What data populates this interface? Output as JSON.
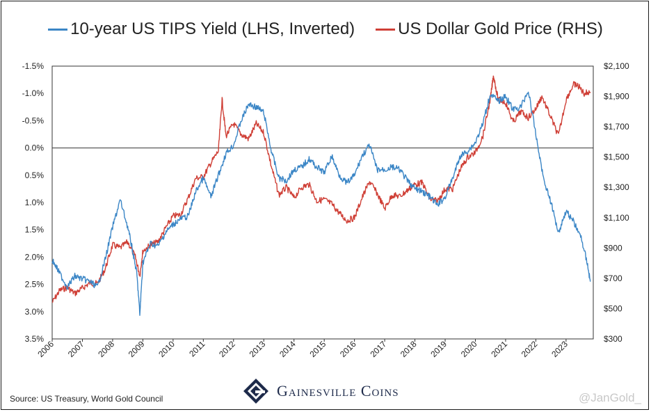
{
  "legend": {
    "tips_label": "10-year US TIPS Yield (LHS, Inverted)",
    "gold_label": "US Dollar Gold Price (RHS)"
  },
  "colors": {
    "tips": "#3b86c6",
    "gold": "#cf3f36",
    "zero_line": "#333333",
    "logo": "#1d2a4a"
  },
  "footer": {
    "source": "Source: US Treasury, World Gold Council",
    "brand": "Gainesville Coins",
    "watermark": "@JanGold_"
  },
  "chart_data": {
    "type": "line",
    "x_ticks": [
      "2006",
      "2007",
      "2008",
      "2009",
      "2010",
      "2011",
      "2012",
      "2013",
      "2014",
      "2015",
      "2016",
      "2017",
      "2018",
      "2019",
      "2020",
      "2021",
      "2022",
      "2023"
    ],
    "left_axis": {
      "inverted": true,
      "ylim": [
        -1.5,
        3.5
      ],
      "ticks": [
        "-1.5%",
        "-1.0%",
        "-0.5%",
        "0.0%",
        "0.5%",
        "1.0%",
        "1.5%",
        "2.0%",
        "2.5%",
        "3.0%",
        "3.5%"
      ]
    },
    "right_axis": {
      "ylim": [
        300,
        2100
      ],
      "ticks": [
        "$300",
        "$500",
        "$700",
        "$900",
        "$1,100",
        "$1,300",
        "$1,500",
        "$1,700",
        "$1,900",
        "$2,100"
      ]
    },
    "xlim": [
      2006.0,
      2023.9
    ],
    "zero_line": 0.0,
    "series": [
      {
        "name": "10-year US TIPS Yield (LHS, Inverted)",
        "axis": "left",
        "x": [
          2006.0,
          2006.25,
          2006.5,
          2006.75,
          2007.0,
          2007.25,
          2007.5,
          2007.75,
          2008.0,
          2008.25,
          2008.5,
          2008.65,
          2008.8,
          2008.9,
          2009.0,
          2009.25,
          2009.5,
          2009.75,
          2010.0,
          2010.25,
          2010.5,
          2010.75,
          2011.0,
          2011.25,
          2011.5,
          2011.75,
          2012.0,
          2012.25,
          2012.5,
          2012.75,
          2013.0,
          2013.25,
          2013.5,
          2013.75,
          2014.0,
          2014.25,
          2014.5,
          2014.75,
          2015.0,
          2015.25,
          2015.5,
          2015.75,
          2016.0,
          2016.25,
          2016.5,
          2016.75,
          2017.0,
          2017.25,
          2017.5,
          2017.75,
          2018.0,
          2018.25,
          2018.5,
          2018.75,
          2019.0,
          2019.25,
          2019.5,
          2019.75,
          2020.0,
          2020.25,
          2020.5,
          2020.75,
          2021.0,
          2021.25,
          2021.5,
          2021.75,
          2022.0,
          2022.25,
          2022.5,
          2022.75,
          2023.0,
          2023.25,
          2023.5,
          2023.7,
          2023.8
        ],
        "values": [
          2.05,
          2.3,
          2.55,
          2.35,
          2.4,
          2.45,
          2.55,
          2.05,
          1.45,
          0.95,
          1.45,
          1.85,
          2.3,
          3.05,
          2.1,
          1.75,
          1.8,
          1.55,
          1.4,
          1.3,
          1.25,
          0.8,
          0.55,
          0.9,
          0.5,
          0.1,
          -0.05,
          -0.5,
          -0.8,
          -0.75,
          -0.65,
          0.05,
          0.55,
          0.6,
          0.4,
          0.35,
          0.2,
          0.35,
          0.45,
          0.15,
          0.5,
          0.65,
          0.5,
          0.15,
          -0.05,
          0.4,
          0.4,
          0.35,
          0.4,
          0.6,
          0.75,
          0.8,
          0.9,
          1.05,
          0.9,
          0.55,
          0.15,
          0.05,
          -0.1,
          -0.45,
          -1.0,
          -0.85,
          -0.95,
          -0.7,
          -0.75,
          -1.05,
          -0.25,
          0.55,
          1.0,
          1.55,
          1.15,
          1.35,
          1.65,
          2.1,
          2.45
        ]
      },
      {
        "name": "US Dollar Gold Price (RHS)",
        "axis": "right",
        "x": [
          2006.0,
          2006.25,
          2006.5,
          2006.75,
          2007.0,
          2007.25,
          2007.5,
          2007.75,
          2008.0,
          2008.25,
          2008.5,
          2008.75,
          2008.9,
          2009.0,
          2009.25,
          2009.5,
          2009.75,
          2010.0,
          2010.25,
          2010.5,
          2010.75,
          2011.0,
          2011.25,
          2011.5,
          2011.62,
          2011.75,
          2012.0,
          2012.25,
          2012.5,
          2012.75,
          2013.0,
          2013.25,
          2013.5,
          2013.75,
          2014.0,
          2014.25,
          2014.5,
          2014.75,
          2015.0,
          2015.25,
          2015.5,
          2015.75,
          2016.0,
          2016.25,
          2016.5,
          2016.75,
          2017.0,
          2017.25,
          2017.5,
          2017.75,
          2018.0,
          2018.25,
          2018.5,
          2018.75,
          2019.0,
          2019.25,
          2019.5,
          2019.75,
          2020.0,
          2020.25,
          2020.5,
          2020.6,
          2020.75,
          2021.0,
          2021.25,
          2021.5,
          2021.75,
          2022.0,
          2022.2,
          2022.5,
          2022.75,
          2023.0,
          2023.25,
          2023.4,
          2023.6,
          2023.8
        ],
        "values": [
          540,
          620,
          640,
          600,
          635,
          670,
          665,
          760,
          920,
          900,
          940,
          840,
          720,
          880,
          920,
          940,
          1030,
          1110,
          1120,
          1230,
          1360,
          1370,
          1460,
          1540,
          1880,
          1640,
          1720,
          1650,
          1620,
          1720,
          1660,
          1440,
          1250,
          1300,
          1230,
          1300,
          1320,
          1210,
          1220,
          1190,
          1130,
          1080,
          1100,
          1230,
          1340,
          1260,
          1160,
          1250,
          1240,
          1280,
          1320,
          1330,
          1220,
          1210,
          1290,
          1290,
          1420,
          1500,
          1530,
          1640,
          1890,
          2040,
          1880,
          1860,
          1730,
          1800,
          1760,
          1820,
          1900,
          1760,
          1640,
          1880,
          1980,
          1970,
          1920,
          1930
        ]
      }
    ]
  }
}
